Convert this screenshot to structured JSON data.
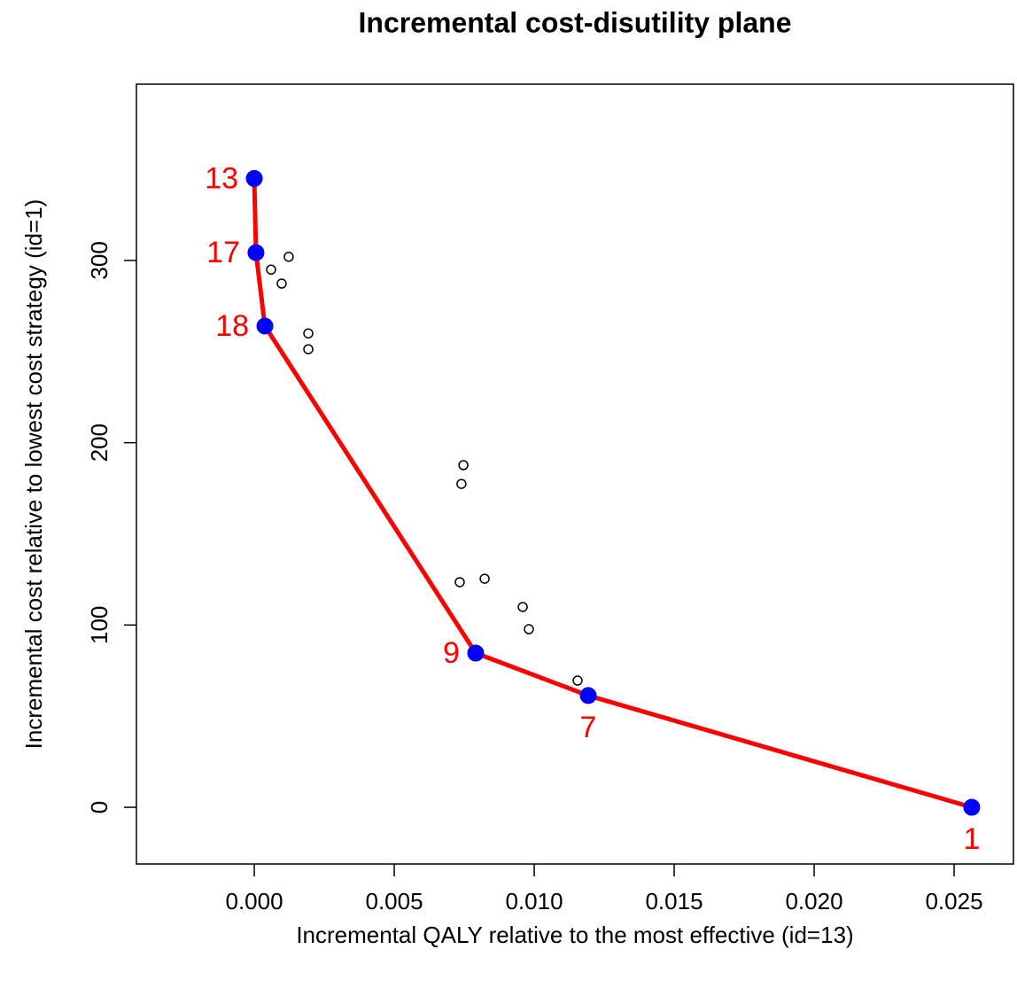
{
  "chart_data": {
    "type": "scatter",
    "title": "Incremental cost-disutility plane",
    "xlabel": "Incremental QALY relative to the most effective (id=13)",
    "ylabel": "Incremental cost relative to lowest cost strategy (id=1)",
    "xlim": [
      -0.00421,
      0.02712
    ],
    "ylim": [
      -31.1,
      396.7
    ],
    "xticks": [
      {
        "value": 0,
        "label": "0.000"
      },
      {
        "value": 0.005,
        "label": "0.005"
      },
      {
        "value": 0.01,
        "label": "0.010"
      },
      {
        "value": 0.015,
        "label": "0.015"
      },
      {
        "value": 0.02,
        "label": "0.020"
      },
      {
        "value": 0.025,
        "label": "0.025"
      }
    ],
    "yticks": [
      0,
      100,
      200,
      300
    ],
    "series": [
      {
        "color": "#0000ff",
        "line_color": "#ff0000",
        "label_color": "#ff0000",
        "x": [
          0,
          6e-05,
          0.00038,
          0.00791,
          0.01193,
          0.02563
        ],
        "values": [
          345,
          304.3,
          264,
          84.6,
          61.3,
          0
        ],
        "labels": [
          "13",
          "17",
          "18",
          "9",
          "7",
          "1"
        ],
        "label_pos": [
          "left",
          "left",
          "left",
          "left",
          "below",
          "below"
        ]
      },
      {
        "color": "#000000",
        "filled": false,
        "x": [
          0.0006,
          0.00098,
          0.00123,
          0.00193,
          0.00193,
          0.00747,
          0.0074,
          0.00734,
          0.00823,
          0.00959,
          0.00981,
          0.01155
        ],
        "values": [
          295,
          287.3,
          302,
          260,
          251.3,
          187.7,
          177.4,
          123.5,
          125.4,
          109.9,
          97.7,
          69.5
        ]
      }
    ]
  }
}
